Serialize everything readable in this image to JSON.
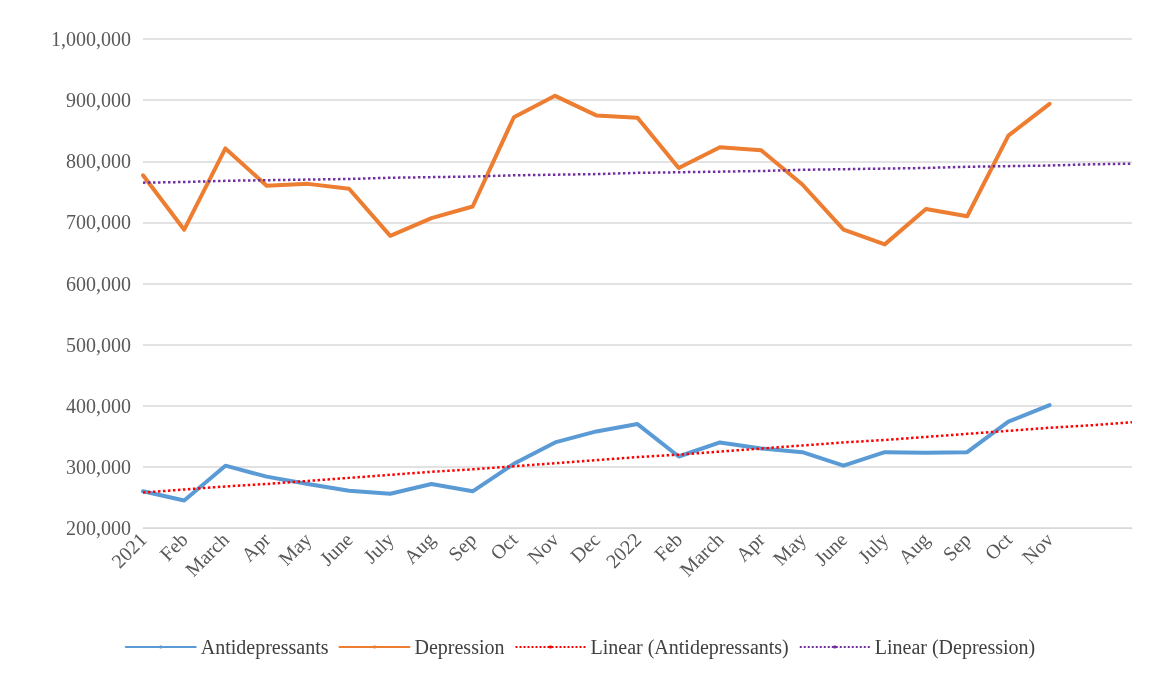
{
  "chart_data": {
    "type": "line",
    "categories": [
      "2021",
      "Feb",
      "March",
      "Apr",
      "May",
      "June",
      "July",
      "Aug",
      "Sep",
      "Oct",
      "Nov",
      "Dec",
      "2022",
      "Feb",
      "March",
      "Apr",
      "May",
      "June",
      "July",
      "Aug",
      "Sep",
      "Oct",
      "Nov",
      null,
      null
    ],
    "series": [
      {
        "name": "Antidepressants",
        "color": "#5b9bd5",
        "line_style": "solid",
        "values": [
          260000,
          245000,
          302000,
          284000,
          272000,
          261000,
          256000,
          272000,
          260000,
          305000,
          340000,
          358000,
          370000,
          317000,
          340000,
          330000,
          324000,
          302000,
          324000,
          323000,
          324000,
          374000,
          401000,
          null,
          null
        ]
      },
      {
        "name": "Depression",
        "color": "#ed7d31",
        "line_style": "solid",
        "values": [
          777000,
          688000,
          821000,
          760000,
          763000,
          755000,
          678000,
          707000,
          726000,
          872000,
          907000,
          875000,
          871000,
          789000,
          823000,
          818000,
          762000,
          688000,
          664000,
          722000,
          710000,
          842000,
          894000,
          null,
          null
        ]
      },
      {
        "name": "Linear (Antidepressants)",
        "color": "#ff0000",
        "line_style": "dotted",
        "values": [
          258000,
          263000,
          268000,
          272000,
          277000,
          282000,
          287000,
          292000,
          296000,
          301000,
          306000,
          311000,
          316000,
          320000,
          325000,
          330000,
          335000,
          340000,
          344000,
          349000,
          354000,
          359000,
          364000,
          368000,
          373000
        ]
      },
      {
        "name": "Linear (Depression)",
        "color": "#7030a0",
        "line_style": "dotted",
        "values": [
          765000,
          766000,
          768000,
          769000,
          770000,
          771000,
          773000,
          774000,
          775000,
          777000,
          778000,
          779000,
          781000,
          782000,
          783000,
          784000,
          786000,
          787000,
          788000,
          789000,
          791000,
          792000,
          793000,
          795000,
          796000
        ]
      }
    ],
    "ylim": [
      200000,
      1000000
    ],
    "yticks": [
      {
        "value": 200000,
        "label": "200,000"
      },
      {
        "value": 300000,
        "label": "300,000"
      },
      {
        "value": 400000,
        "label": "400,000"
      },
      {
        "value": 500000,
        "label": "500,000"
      },
      {
        "value": 600000,
        "label": "600,000"
      },
      {
        "value": 700000,
        "label": "700,000"
      },
      {
        "value": 800000,
        "label": "800,000"
      },
      {
        "value": 900000,
        "label": "900,000"
      },
      {
        "value": 1000000,
        "label": "1,000,000"
      }
    ],
    "grid": "y",
    "legend": "bottom",
    "marker": "none"
  }
}
